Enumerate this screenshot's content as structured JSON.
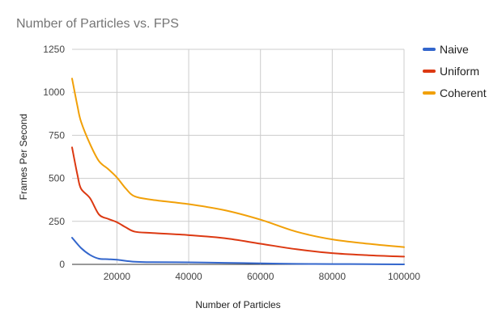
{
  "chart_data": {
    "type": "line",
    "title": "Number of Particles vs. FPS",
    "xlabel": "Number of Particles",
    "ylabel": "Frames Per Second",
    "xlim": [
      7500,
      100000
    ],
    "ylim": [
      0,
      1250
    ],
    "xticks": [
      20000,
      40000,
      60000,
      80000,
      100000
    ],
    "yticks": [
      0,
      250,
      500,
      750,
      1000,
      1250
    ],
    "grid": true,
    "legend_position": "right",
    "series": [
      {
        "name": "Naive",
        "color": "#3366cc",
        "x": [
          7500,
          10000,
          12500,
          15000,
          17500,
          20000,
          25000,
          30000,
          40000,
          50000,
          60000,
          70000,
          80000,
          90000,
          100000
        ],
        "y": [
          155,
          95,
          55,
          33,
          30,
          27,
          15,
          13,
          12,
          9,
          6,
          3,
          2,
          1,
          0
        ]
      },
      {
        "name": "Uniform",
        "color": "#dc3912",
        "x": [
          7500,
          9000,
          10000,
          12500,
          15000,
          17500,
          20000,
          22500,
          25000,
          30000,
          40000,
          50000,
          60000,
          70000,
          80000,
          90000,
          100000
        ],
        "y": [
          680,
          520,
          440,
          385,
          290,
          265,
          245,
          215,
          190,
          182,
          170,
          152,
          120,
          88,
          65,
          53,
          45
        ]
      },
      {
        "name": "Coherent",
        "color": "#f1a008",
        "x": [
          7500,
          9000,
          10000,
          12500,
          15000,
          17500,
          20000,
          22500,
          25000,
          30000,
          40000,
          50000,
          60000,
          70000,
          80000,
          90000,
          100000
        ],
        "y": [
          1080,
          920,
          830,
          700,
          600,
          555,
          505,
          440,
          395,
          375,
          350,
          315,
          260,
          190,
          145,
          120,
          100
        ]
      }
    ]
  }
}
